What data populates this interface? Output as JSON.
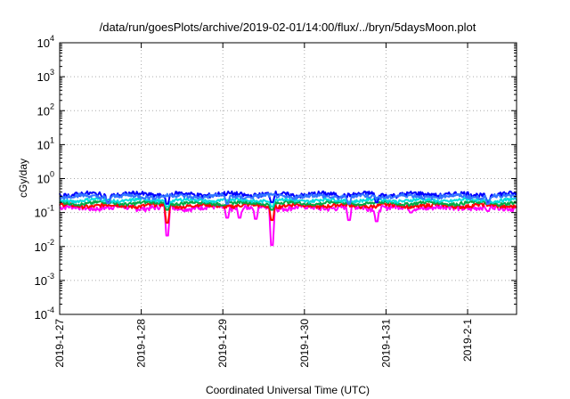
{
  "chart_data": {
    "type": "line",
    "title": "/data/run/goesPlots/archive/2019-02-01/14:00/flux/../bryn/5daysMoon.plot",
    "xlabel": "Coordinated Universal Time (UTC)",
    "ylabel": "cGy/day",
    "yscale": "log",
    "ylim": [
      0.0001,
      10000
    ],
    "xlim": [
      0,
      5.6
    ],
    "grid": true,
    "y_ticks": [
      {
        "value": 0.0001,
        "base": "10",
        "exp": "-4"
      },
      {
        "value": 0.001,
        "base": "10",
        "exp": "-3"
      },
      {
        "value": 0.01,
        "base": "10",
        "exp": "-2"
      },
      {
        "value": 0.1,
        "base": "10",
        "exp": "-1"
      },
      {
        "value": 1,
        "base": "10",
        "exp": "0"
      },
      {
        "value": 10,
        "base": "10",
        "exp": "1"
      },
      {
        "value": 100,
        "base": "10",
        "exp": "2"
      },
      {
        "value": 1000,
        "base": "10",
        "exp": "3"
      },
      {
        "value": 10000,
        "base": "10",
        "exp": "4"
      }
    ],
    "x_ticks": [
      {
        "value": 0,
        "label": "2019-1-27"
      },
      {
        "value": 1,
        "label": "2019-1-28"
      },
      {
        "value": 2,
        "label": "2019-1-29"
      },
      {
        "value": 3,
        "label": "2019-1-30"
      },
      {
        "value": 4,
        "label": "2019-1-31"
      },
      {
        "value": 5,
        "label": "2019-2-1"
      }
    ],
    "series": [
      {
        "color": "#ff00ff",
        "base": 0.14,
        "noise": 0.025,
        "dips": [
          [
            1.32,
            0.021
          ],
          [
            2.05,
            0.07
          ],
          [
            2.2,
            0.07
          ],
          [
            2.4,
            0.065
          ],
          [
            2.6,
            0.011
          ],
          [
            3.55,
            0.06
          ],
          [
            3.88,
            0.055
          ],
          [
            4.3,
            0.1
          ],
          [
            5.25,
            0.11
          ]
        ]
      },
      {
        "color": "#ff0000",
        "base": 0.16,
        "noise": 0.02,
        "dips": [
          [
            1.32,
            0.05
          ],
          [
            2.6,
            0.06
          ]
        ]
      },
      {
        "color": "#00aa44",
        "base": 0.19,
        "noise": 0.02,
        "dips": [
          [
            1.32,
            0.12
          ],
          [
            2.6,
            0.12
          ]
        ]
      },
      {
        "color": "#00dddd",
        "base": 0.23,
        "noise": 0.025,
        "dips": [
          [
            1.32,
            0.15
          ],
          [
            2.6,
            0.15
          ]
        ]
      },
      {
        "color": "#0000ff",
        "base": 0.34,
        "noise": 0.055,
        "dips": [
          [
            0.6,
            0.2
          ],
          [
            1.32,
            0.18
          ],
          [
            2.6,
            0.2
          ],
          [
            3.88,
            0.2
          ],
          [
            5.25,
            0.2
          ]
        ]
      },
      {
        "color": "#3377ff",
        "base": 0.3,
        "noise": 0.04,
        "dips": [
          [
            0.6,
            0.19
          ],
          [
            2.05,
            0.18
          ],
          [
            3.55,
            0.18
          ],
          [
            5.25,
            0.18
          ]
        ]
      }
    ]
  }
}
